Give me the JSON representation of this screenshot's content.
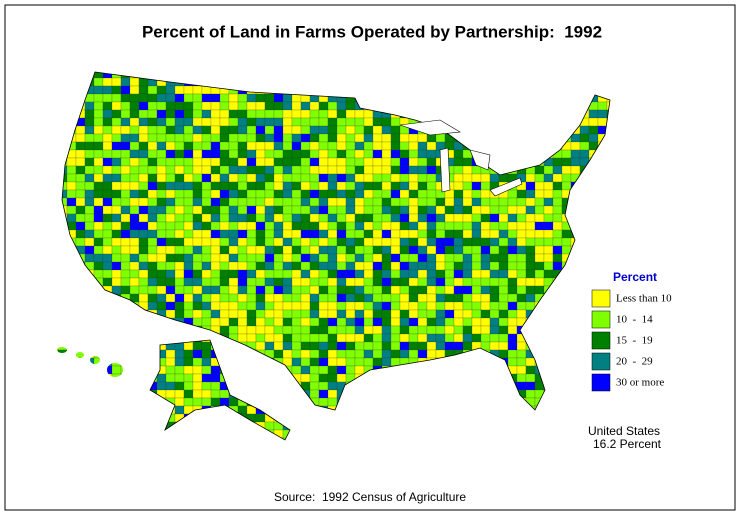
{
  "title": "Percent of Land in Farms Operated by Partnership:  1992",
  "legend": {
    "title": "Percent",
    "items": [
      {
        "label": "Less than 10",
        "color": "#ffff00"
      },
      {
        "label": "10  -  14",
        "color": "#80ff00"
      },
      {
        "label": "15  -  19",
        "color": "#008000"
      },
      {
        "label": "20  -  29",
        "color": "#008080"
      },
      {
        "label": "30 or more",
        "color": "#0000ff"
      }
    ]
  },
  "summary": [
    "United States",
    "16.2 Percent"
  ],
  "source": "Source:  1992 Census of Agriculture"
}
